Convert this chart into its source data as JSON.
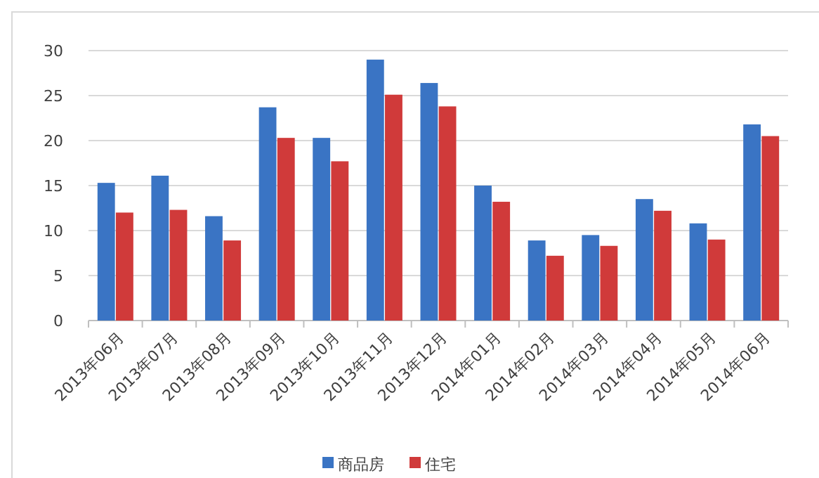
{
  "chart_data": {
    "type": "bar",
    "categories": [
      "2013年06月",
      "2013年07月",
      "2013年08月",
      "2013年09月",
      "2013年10月",
      "2013年11月",
      "2013年12月",
      "2014年01月",
      "2014年02月",
      "2014年03月",
      "2014年04月",
      "2014年05月",
      "2014年06月"
    ],
    "series": [
      {
        "name": "商品房",
        "color": "#3a74c4",
        "values": [
          15.3,
          16.1,
          11.6,
          23.7,
          20.3,
          29,
          26.4,
          15,
          8.9,
          9.5,
          13.5,
          10.8,
          21.8
        ]
      },
      {
        "name": "住宅",
        "color": "#d03a3a",
        "values": [
          12,
          12.3,
          8.9,
          20.3,
          17.7,
          25.1,
          23.8,
          13.2,
          7.2,
          8.3,
          12.2,
          9,
          20.5
        ]
      }
    ],
    "ylim": [
      0,
      30
    ],
    "yticks": [
      0,
      5,
      10,
      15,
      20,
      25,
      30
    ],
    "grid": "y",
    "legend": "bottom"
  }
}
